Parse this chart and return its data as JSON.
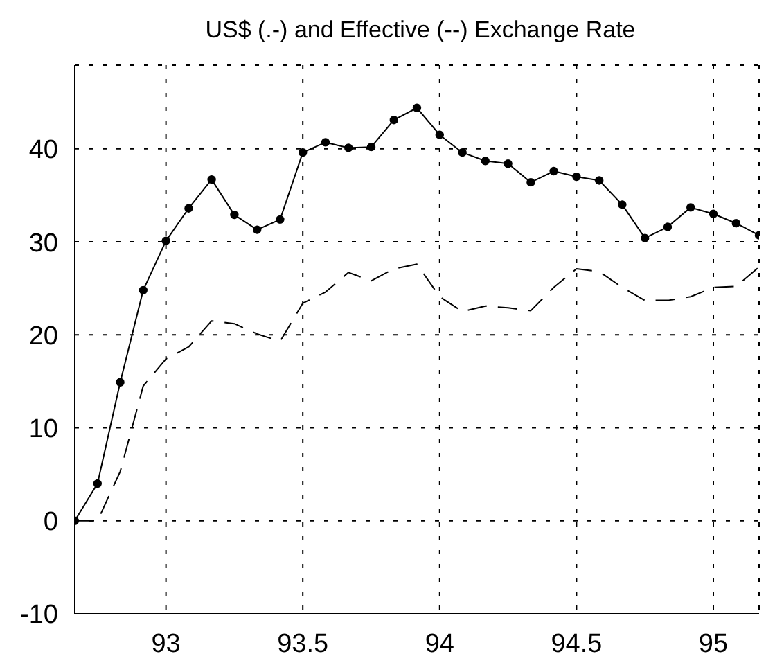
{
  "chart_data": {
    "type": "line",
    "title": "US$ (.-) and Effective (--) Exchange Rate",
    "x": [
      92.667,
      92.75,
      92.833,
      92.917,
      93.0,
      93.083,
      93.167,
      93.25,
      93.333,
      93.417,
      93.5,
      93.583,
      93.667,
      93.75,
      93.833,
      93.917,
      94.0,
      94.083,
      94.167,
      94.25,
      94.333,
      94.417,
      94.5,
      94.583,
      94.667,
      94.75,
      94.833,
      94.917,
      95.0,
      95.083,
      95.167
    ],
    "series": [
      {
        "color": "#000000",
        "marker": "circle",
        "line_style": "solid",
        "values": [
          0,
          4.0,
          14.9,
          24.8,
          30.1,
          33.6,
          36.7,
          32.9,
          31.3,
          32.4,
          39.6,
          40.7,
          40.1,
          40.2,
          43.1,
          44.4,
          41.5,
          39.6,
          38.7,
          38.4,
          36.4,
          37.6,
          37.0,
          36.6,
          34.0,
          30.4,
          31.6,
          33.7,
          33.0,
          32.0,
          30.7
        ]
      },
      {
        "color": "#000000",
        "marker": "none",
        "line_style": "dashed",
        "values": [
          0,
          0,
          5.3,
          14.5,
          17.4,
          18.7,
          21.5,
          21.2,
          20.1,
          19.3,
          23.4,
          24.6,
          26.7,
          25.8,
          27.1,
          27.6,
          24.1,
          22.5,
          23.1,
          22.9,
          22.6,
          25.1,
          27.1,
          26.8,
          25.1,
          23.7,
          23.7,
          24.1,
          25.1,
          25.2,
          27.3
        ]
      }
    ],
    "xlim": [
      92.667,
      95.167
    ],
    "xticks": [
      93,
      93.5,
      94,
      94.5,
      95
    ],
    "ylim": [
      -10,
      49
    ],
    "yticks": [
      -10,
      0,
      10,
      20,
      30,
      40
    ],
    "grid": true
  }
}
